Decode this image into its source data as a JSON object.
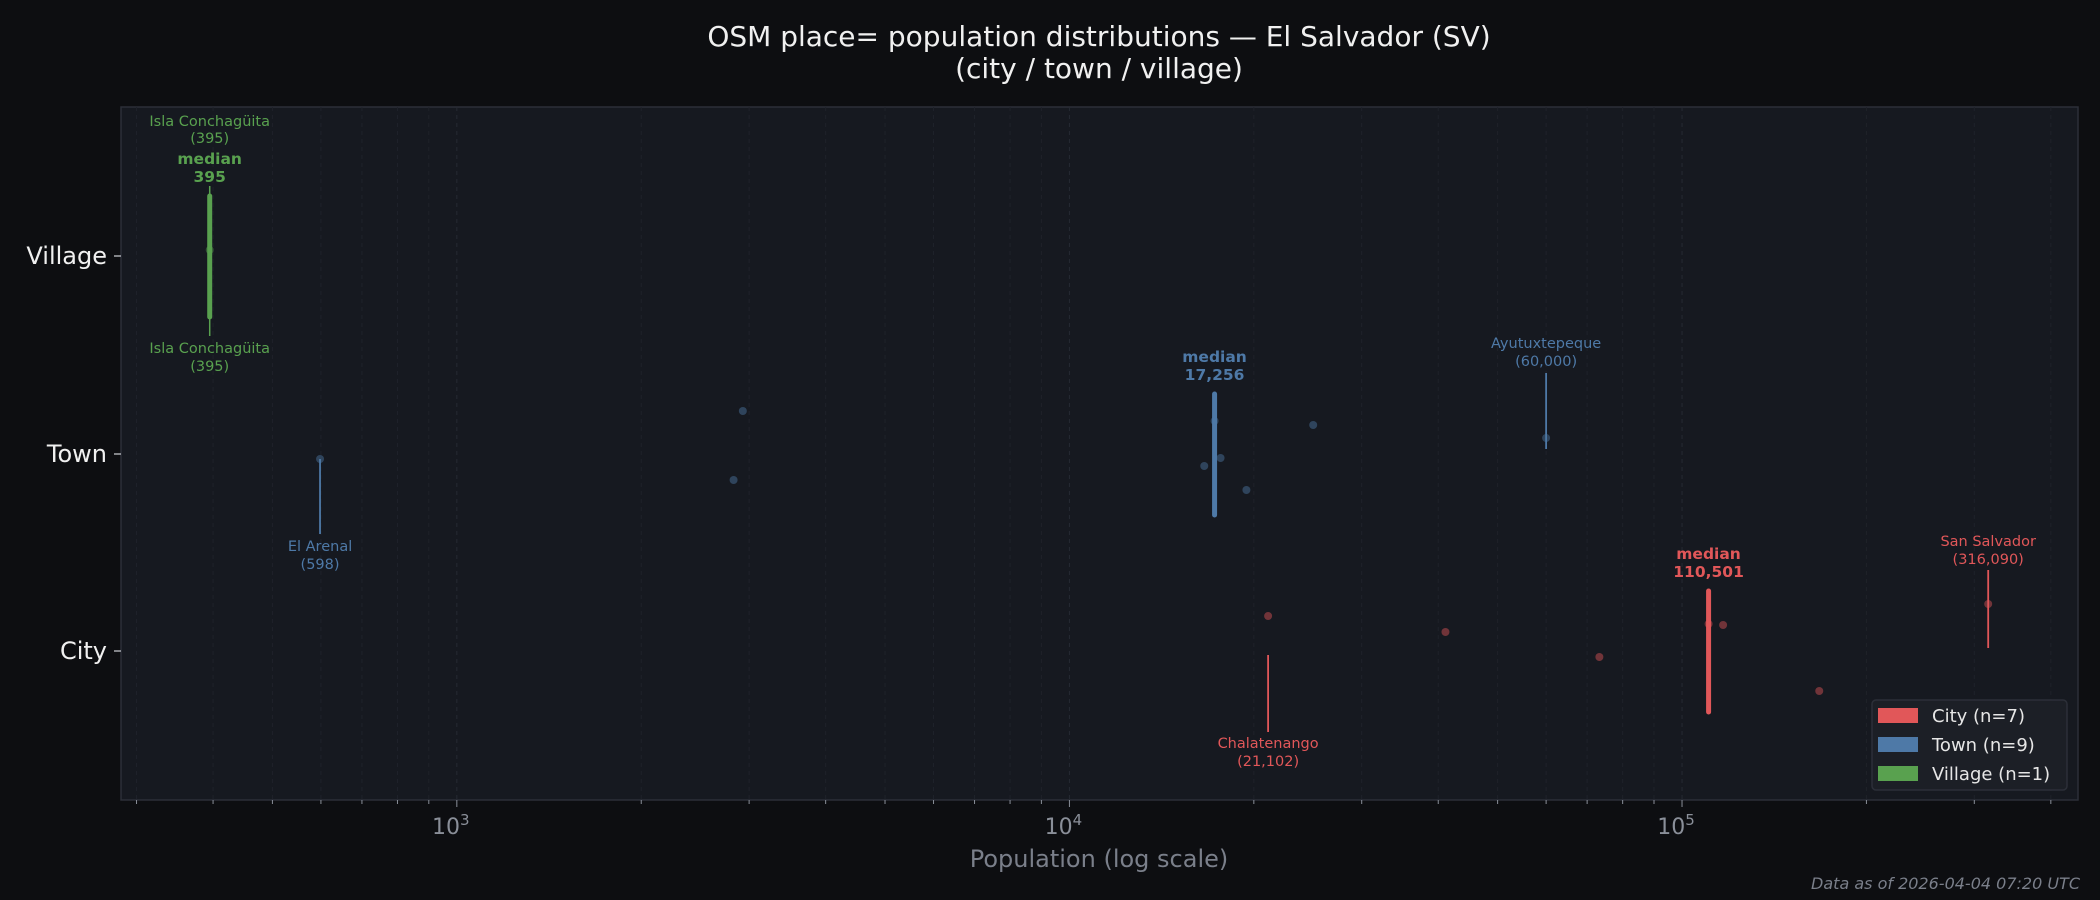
{
  "chart_data": {
    "type": "scatter",
    "title_line1": "OSM place= population distributions — El Salvador (SV)",
    "title_line2": "(city / town / village)",
    "xlabel": "Population (log scale)",
    "ylabel": "",
    "xscale": "log",
    "xlim": [
      283,
      443000
    ],
    "xticks": [
      {
        "value": 1000,
        "base": "10",
        "exp": "3"
      },
      {
        "value": 10000,
        "base": "10",
        "exp": "4"
      },
      {
        "value": 100000,
        "base": "10",
        "exp": "5"
      }
    ],
    "grid": "vertical dashed, major and minor",
    "legend_placement": "lower-right",
    "categories": [
      "City",
      "Town",
      "Village"
    ],
    "series": [
      {
        "name": "City",
        "legend": "City  (n=7)",
        "color": "#e15759",
        "values": [
          21102,
          41100,
          73300,
          110501,
          116700,
          167500,
          316090
        ],
        "median": 110501,
        "median_label": "median",
        "median_value": "110,501",
        "min": {
          "name": "Chalatenango",
          "value": "(21,102)",
          "pop": 21102
        },
        "max": {
          "name": "San Salvador",
          "value": "(316,090)",
          "pop": 316090
        }
      },
      {
        "name": "Town",
        "legend": "Town  (n=9)",
        "color": "#4e79a7",
        "values": [
          598,
          2830,
          2930,
          16600,
          17256,
          17650,
          19450,
          25000,
          60000
        ],
        "median": 17256,
        "median_label": "median",
        "median_value": "17,256",
        "min": {
          "name": "El Arenal",
          "value": "(598)",
          "pop": 598
        },
        "max": {
          "name": "Ayutuxtepeque",
          "value": "(60,000)",
          "pop": 60000
        }
      },
      {
        "name": "Village",
        "legend": "Village  (n=1)",
        "color": "#59a14f",
        "values": [
          395
        ],
        "median": 395,
        "median_label": "median",
        "median_value": "395",
        "min": {
          "name": "Isla Conchagüita",
          "value": "(395)",
          "pop": 395
        },
        "max": {
          "name": "Isla Conchagüita",
          "value": "(395)",
          "pop": 395
        }
      }
    ]
  },
  "footer": "Data as of 2026-04-04 07:20 UTC"
}
